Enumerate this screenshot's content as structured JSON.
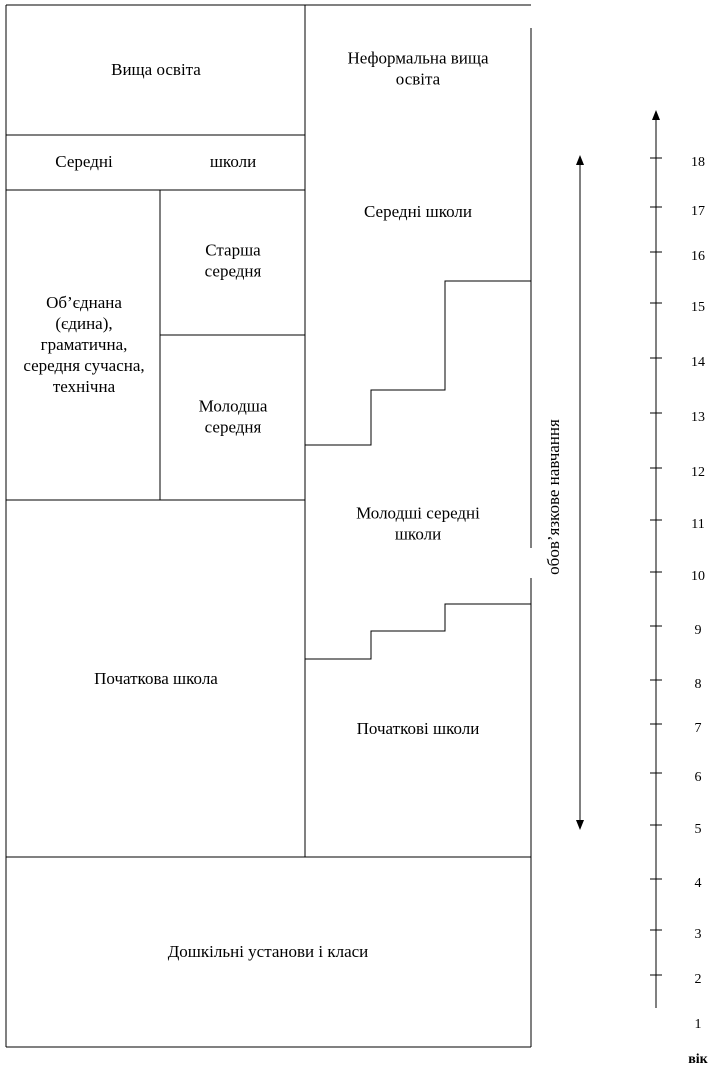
{
  "left": {
    "higher": "Вища освіта",
    "secondary_left": "Середні",
    "secondary_right": "школи",
    "comprehensive": [
      "Об’єднана",
      "(єдина),",
      "граматична,",
      "середня сучасна,",
      "технічна"
    ],
    "upper_secondary": [
      "Старша",
      "середня"
    ],
    "lower_secondary": [
      "Молодша",
      "середня"
    ],
    "primary": "Початкова школа"
  },
  "right": {
    "informal_higher": [
      "Неформальна вища",
      "освіта"
    ],
    "secondary": "Середні школи",
    "junior_secondary": [
      "Молодші середні",
      "школи"
    ],
    "primary": "Початкові школи"
  },
  "preschool": "Дошкільні установи і класи",
  "compulsory": "обов’язкове навчання",
  "age_scale": {
    "labels": [
      1,
      2,
      3,
      4,
      5,
      6,
      7,
      8,
      9,
      10,
      11,
      12,
      13,
      14,
      15,
      16,
      17,
      18
    ],
    "caption": "вік"
  }
}
